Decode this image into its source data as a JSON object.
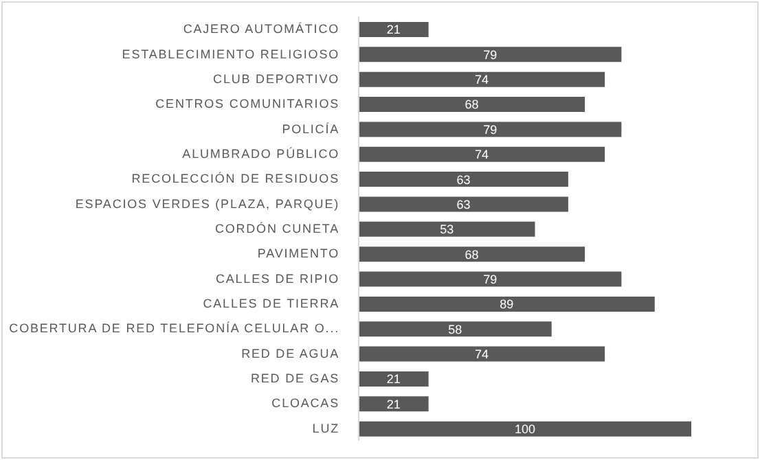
{
  "chart_data": {
    "type": "bar",
    "orientation": "horizontal",
    "categories": [
      "CAJERO AUTOMÁTICO",
      "ESTABLECIMIENTO RELIGIOSO",
      "CLUB DEPORTIVO",
      "CENTROS COMUNITARIOS",
      "POLICÍA",
      "ALUMBRADO PÚBLICO",
      "RECOLECCIÓN DE RESIDUOS",
      "ESPACIOS VERDES (PLAZA, PARQUE)",
      "CORDÓN CUNETA",
      "PAVIMENTO",
      "CALLES DE RIPIO",
      "CALLES DE TIERRA",
      "COBERTURA DE RED TELEFONÍA CELULAR O...",
      "RED DE AGUA",
      "RED DE GAS",
      "CLOACAS",
      "LUZ"
    ],
    "values": [
      21,
      79,
      74,
      68,
      79,
      74,
      63,
      63,
      53,
      68,
      79,
      89,
      58,
      74,
      21,
      21,
      100
    ],
    "color": "#595959",
    "data_labels": true
  }
}
